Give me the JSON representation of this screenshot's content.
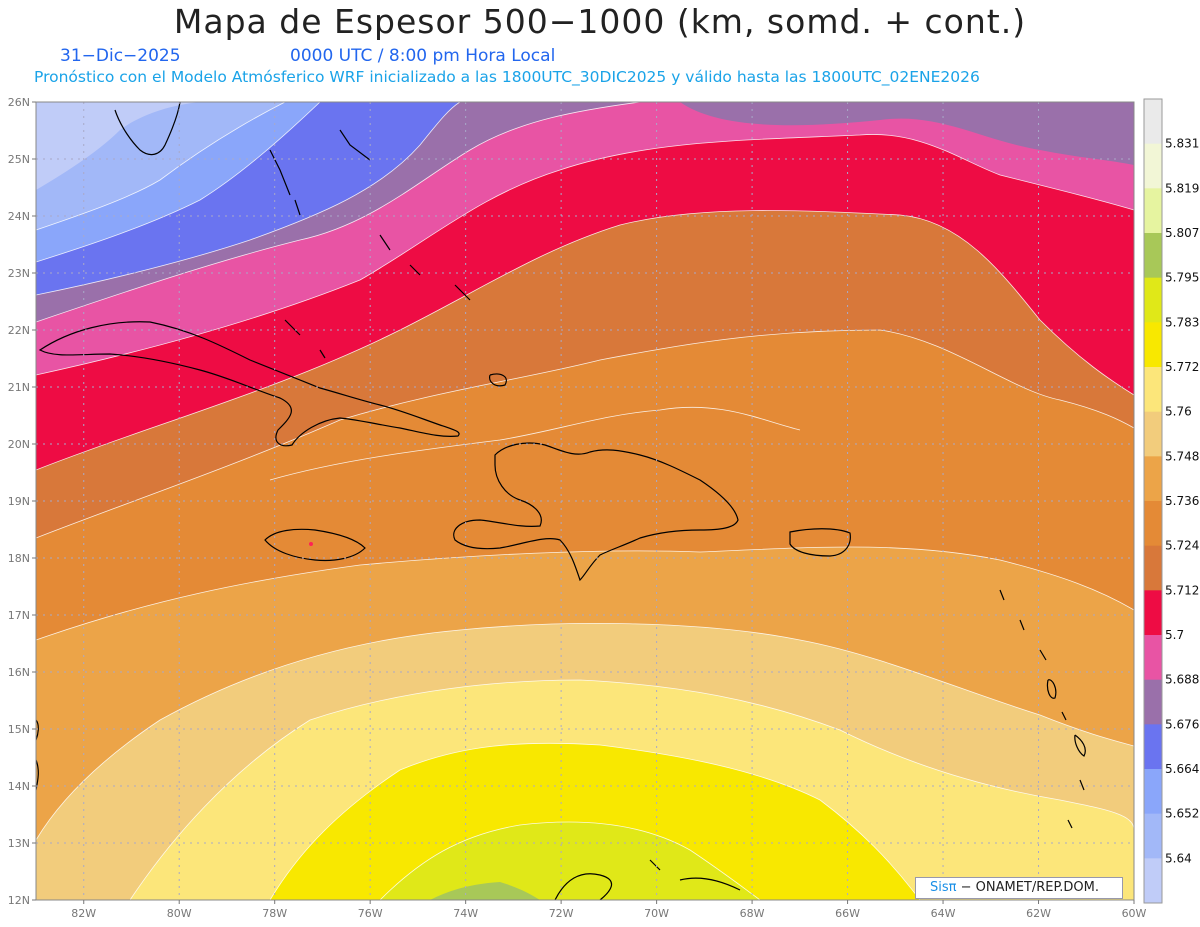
{
  "header": {
    "title": "Mapa de Espesor 500−1000 (km, somd. + cont.)",
    "date": "31−Dic−2025",
    "time": "0000 UTC / 8:00 pm Hora Local",
    "forecast_note": "Pronóstico con el Modelo Atmósferico WRF inicializado a las 1800UTC_30DIC2025 y válido hasta las  1800UTC_02ENE2026"
  },
  "map": {
    "lon_range": [
      -83,
      -60
    ],
    "lat_range": [
      12,
      26
    ],
    "lat_ticks": [
      "26N",
      "25N",
      "24N",
      "23N",
      "22N",
      "21N",
      "20N",
      "19N",
      "18N",
      "17N",
      "16N",
      "15N",
      "14N",
      "13N",
      "12N"
    ],
    "lon_ticks": [
      "82W",
      "80W",
      "78W",
      "76W",
      "74W",
      "72W",
      "70W",
      "68W",
      "66W",
      "64W",
      "62W",
      "60W"
    ]
  },
  "colorbar": {
    "levels": [
      "5.64",
      "5.652",
      "5.664",
      "5.676",
      "5.688",
      "5.7",
      "5.712",
      "5.724",
      "5.736",
      "5.748",
      "5.76",
      "5.772",
      "5.783",
      "5.795",
      "5.807",
      "5.819",
      "5.831"
    ],
    "colors": [
      "#c0ccf8",
      "#a2b8f8",
      "#8aa6fa",
      "#6a74f0",
      "#9a70aa",
      "#e854a4",
      "#ee0c44",
      "#d8783a",
      "#e48a36",
      "#eca448",
      "#f2cc7c",
      "#fce67a",
      "#f8e800",
      "#e0e818",
      "#a8c858",
      "#e6f4a0",
      "#f2f6d6",
      "#eaeaea"
    ]
  },
  "credit": {
    "brand": "Sisπ",
    "text": " − ONAMET/REP.DOM."
  }
}
